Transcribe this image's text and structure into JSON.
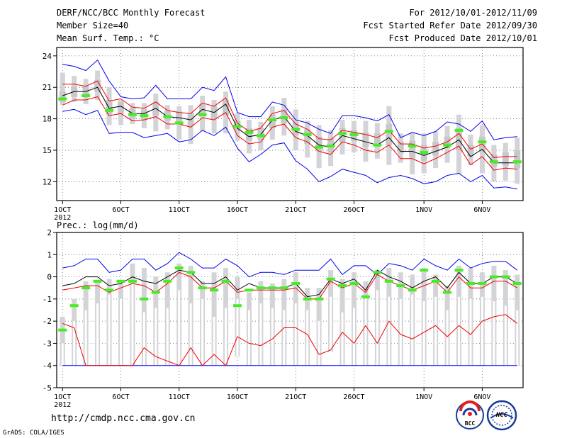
{
  "header": {
    "left": [
      "DERF/NCC/BCC Monthly Forecast",
      "Member Size=40",
      "Mean Surf. Temp.: °C"
    ],
    "right": [
      "For 2012/10/01-2012/11/09",
      "Fcst Started Refer Date 2012/09/30",
      "Fcst Produced Date 2012/10/01"
    ]
  },
  "footer": {
    "url": "http://cmdp.ncc.cma.gov.cn",
    "credit": "GrADS: COLA/IGES",
    "logo_left_text": "BCC",
    "logo_right_text": "NCC"
  },
  "colors": {
    "envelope": "#0000ee",
    "spread": "#ee0000",
    "mean": "#000000",
    "box": "#d4d4d8",
    "marker": "#44ee22",
    "grid": "#555555"
  },
  "chart_data": [
    {
      "type": "box-ensemble",
      "title": "Mean Surf. Temp.: °C",
      "x_tick_labels": [
        "1OCT",
        "6OCT",
        "11OCT",
        "16OCT",
        "21OCT",
        "26OCT",
        "1NOV",
        "6NOV"
      ],
      "x_tick_days": [
        1,
        6,
        11,
        16,
        21,
        26,
        32,
        37
      ],
      "x_year_label": "2012",
      "xlim": [
        0.5,
        40.5
      ],
      "ylim": [
        10.2,
        24.8
      ],
      "y_ticks": [
        12,
        15,
        18,
        21,
        24
      ],
      "days": [
        1,
        2,
        3,
        4,
        5,
        6,
        7,
        8,
        9,
        10,
        11,
        12,
        13,
        14,
        15,
        16,
        17,
        18,
        19,
        20,
        21,
        22,
        23,
        24,
        25,
        26,
        27,
        28,
        29,
        30,
        31,
        32,
        33,
        34,
        35,
        36,
        37,
        38,
        39,
        40
      ],
      "max": [
        23.2,
        23.0,
        22.6,
        23.6,
        21.6,
        20.1,
        19.9,
        20.0,
        21.2,
        19.9,
        19.9,
        19.9,
        21.0,
        20.7,
        22.0,
        18.6,
        18.2,
        18.2,
        19.6,
        19.3,
        17.9,
        17.6,
        17.0,
        16.6,
        18.3,
        18.3,
        18.1,
        17.8,
        18.4,
        16.2,
        16.7,
        16.4,
        16.8,
        17.7,
        17.5,
        16.8,
        17.8,
        16.0,
        16.2,
        16.3
      ],
      "max_ensemble_top": [
        22.4,
        22.1,
        21.8,
        22.6,
        21.0,
        19.8,
        19.5,
        19.5,
        20.4,
        19.3,
        19.2,
        19.3,
        20.2,
        19.8,
        20.6,
        18.5,
        17.9,
        17.7,
        19.2,
        20.0,
        18.9,
        17.8,
        17.4,
        16.9,
        17.9,
        17.8,
        17.8,
        17.6,
        19.2,
        16.6,
        16.7,
        16.6,
        16.8,
        17.3,
        18.4,
        16.5,
        17.4,
        15.5,
        15.7,
        16.2
      ],
      "min_ensemble_bottom": [
        19.3,
        19.6,
        19.4,
        19.8,
        17.4,
        17.4,
        17.5,
        17.1,
        16.8,
        17.0,
        16.0,
        15.6,
        16.8,
        16.6,
        16.6,
        15.9,
        14.7,
        15.0,
        16.0,
        16.4,
        15.0,
        14.3,
        13.3,
        13.5,
        14.6,
        14.8,
        13.9,
        14.2,
        13.6,
        13.8,
        12.7,
        12.8,
        13.3,
        13.8,
        12.7,
        13.6,
        12.8,
        12.0,
        12.1,
        11.8
      ],
      "q75": [
        20.6,
        21.1,
        21.1,
        21.7,
        19.8,
        19.6,
        19.0,
        18.9,
        19.6,
        18.8,
        18.7,
        18.5,
        19.4,
        19.2,
        19.8,
        17.8,
        17.1,
        17.1,
        18.4,
        18.9,
        17.7,
        17.0,
        16.3,
        16.1,
        17.1,
        16.9,
        16.7,
        16.6,
        17.5,
        15.8,
        15.9,
        15.5,
        15.8,
        16.3,
        17.1,
        15.5,
        16.3,
        14.6,
        14.8,
        15.0
      ],
      "q25": [
        19.6,
        20.1,
        20.3,
        20.6,
        18.4,
        18.5,
        18.0,
        17.9,
        18.3,
        17.8,
        17.5,
        17.3,
        18.2,
        18.0,
        18.3,
        16.8,
        15.9,
        16.0,
        17.1,
        17.6,
        16.4,
        15.6,
        14.9,
        14.8,
        15.8,
        15.9,
        15.3,
        15.3,
        15.5,
        14.7,
        14.3,
        14.0,
        14.5,
        15.2,
        15.0,
        14.4,
        14.9,
        13.4,
        13.5,
        13.3
      ],
      "median": [
        20.2,
        20.7,
        20.5,
        21.0,
        18.9,
        19.1,
        18.5,
        18.4,
        18.9,
        18.2,
        18.0,
        17.7,
        18.8,
        18.5,
        19.0,
        17.2,
        16.4,
        16.4,
        17.8,
        18.2,
        16.9,
        16.4,
        15.4,
        15.3,
        16.5,
        16.4,
        16.0,
        15.7,
        16.7,
        15.3,
        15.4,
        14.9,
        14.9,
        15.5,
        16.8,
        14.9,
        15.6,
        13.8,
        14.0,
        14.0
      ],
      "upper_spread": [
        21.3,
        21.3,
        21.1,
        21.6,
        19.7,
        19.9,
        19.1,
        19.0,
        19.6,
        18.8,
        18.6,
        18.5,
        19.5,
        19.2,
        20.0,
        17.6,
        16.8,
        17.1,
        18.5,
        18.8,
        17.5,
        17.0,
        16.1,
        16.0,
        16.9,
        16.7,
        16.5,
        16.2,
        16.9,
        15.6,
        15.6,
        15.2,
        15.4,
        15.8,
        16.6,
        15.1,
        15.6,
        14.3,
        14.4,
        14.4
      ],
      "mean": [
        20.2,
        20.6,
        20.6,
        21.0,
        19.0,
        19.2,
        18.5,
        18.5,
        19.0,
        18.2,
        18.1,
        17.9,
        18.9,
        18.6,
        19.4,
        17.1,
        16.3,
        16.5,
        17.9,
        18.2,
        16.8,
        16.4,
        15.5,
        15.3,
        16.4,
        16.1,
        15.8,
        15.5,
        16.2,
        14.9,
        14.9,
        14.5,
        14.9,
        15.3,
        16.0,
        14.4,
        15.1,
        13.8,
        13.8,
        13.8
      ],
      "lower_spread": [
        19.3,
        19.8,
        19.8,
        20.1,
        18.3,
        18.5,
        17.8,
        17.9,
        18.2,
        17.5,
        17.5,
        17.2,
        18.1,
        17.9,
        18.6,
        16.4,
        15.6,
        15.8,
        17.2,
        17.5,
        16.2,
        15.8,
        14.9,
        14.6,
        15.8,
        15.5,
        15.0,
        14.8,
        15.5,
        14.2,
        14.2,
        13.7,
        14.2,
        14.8,
        15.4,
        13.6,
        14.4,
        13.1,
        13.3,
        13.2
      ],
      "min": [
        18.7,
        18.9,
        18.4,
        18.8,
        16.6,
        16.7,
        16.7,
        16.2,
        16.4,
        16.6,
        15.8,
        16.0,
        16.9,
        16.4,
        17.2,
        15.2,
        13.9,
        14.6,
        15.5,
        15.7,
        14.0,
        13.2,
        12.0,
        12.5,
        13.2,
        12.9,
        12.6,
        11.9,
        12.4,
        12.6,
        12.3,
        11.8,
        12.0,
        12.6,
        12.8,
        12.0,
        12.6,
        11.4,
        11.5,
        11.3
      ],
      "green": [
        19.9,
        null,
        20.2,
        null,
        18.8,
        null,
        18.4,
        18.3,
        null,
        18.2,
        17.6,
        null,
        18.4,
        null,
        null,
        17.3,
        16.7,
        16.4,
        17.9,
        18.1,
        17.0,
        16.5,
        15.3,
        15.4,
        16.6,
        16.5,
        null,
        15.5,
        16.8,
        null,
        15.4,
        14.8,
        null,
        15.5,
        16.9,
        null,
        15.8,
        13.9,
        null,
        13.9
      ]
    },
    {
      "type": "box-ensemble",
      "title": "Prec.: log(mm/d)",
      "x_tick_labels": [
        "1OCT",
        "6OCT",
        "11OCT",
        "16OCT",
        "21OCT",
        "26OCT",
        "1NOV",
        "6NOV"
      ],
      "x_tick_days": [
        1,
        6,
        11,
        16,
        21,
        26,
        32,
        37
      ],
      "x_year_label": "2012",
      "xlim": [
        0.5,
        40.5
      ],
      "ylim": [
        -5,
        2
      ],
      "y_ticks": [
        -5,
        -4,
        -3,
        -2,
        -1,
        0,
        1,
        2
      ],
      "days": [
        1,
        2,
        3,
        4,
        5,
        6,
        7,
        8,
        9,
        10,
        11,
        12,
        13,
        14,
        15,
        16,
        17,
        18,
        19,
        20,
        21,
        22,
        23,
        24,
        25,
        26,
        27,
        28,
        29,
        30,
        31,
        32,
        33,
        34,
        35,
        36,
        37,
        38,
        39,
        40
      ],
      "max": [
        0.4,
        0.5,
        0.8,
        0.8,
        0.2,
        0.3,
        0.8,
        0.8,
        0.3,
        0.6,
        1.1,
        0.8,
        0.4,
        0.4,
        0.8,
        0.5,
        0.0,
        0.2,
        0.2,
        0.1,
        0.3,
        0.3,
        0.3,
        0.8,
        0.1,
        0.5,
        0.5,
        0.1,
        0.6,
        0.5,
        0.3,
        0.8,
        0.5,
        0.3,
        0.8,
        0.4,
        0.6,
        0.7,
        0.7,
        0.3
      ],
      "box_top": [
        -1.8,
        -1.0,
        -0.2,
        -0.2,
        -0.1,
        -0.3,
        0.6,
        0.4,
        0.0,
        0.2,
        0.6,
        0.5,
        -0.2,
        0.2,
        0.4,
        0.0,
        -0.7,
        -0.2,
        -0.3,
        -0.1,
        0.2,
        -0.5,
        -0.5,
        0.3,
        -0.1,
        0.2,
        -0.2,
        0.3,
        0.4,
        0.2,
        0.1,
        0.4,
        0.1,
        -0.4,
        0.5,
        0.4,
        0.2,
        0.5,
        0.3,
        0.1
      ],
      "q75": [
        -3.0,
        -2.0,
        -1.5,
        -1.2,
        -0.8,
        -1.0,
        -0.3,
        -1.6,
        -1.4,
        -1.4,
        -0.6,
        -1.2,
        -1.0,
        -1.8,
        -1.4,
        -1.0,
        -1.5,
        -1.2,
        -1.4,
        -1.5,
        -1.2,
        -1.5,
        -2.0,
        -0.9,
        -1.6,
        -1.4,
        -1.0,
        -0.6,
        -0.9,
        -1.0,
        -0.8,
        -1.1,
        -0.9,
        -1.5,
        -0.9,
        -1.0,
        -0.9,
        -1.1,
        -1.3,
        -1.5
      ],
      "box_bottom": [
        -4.0,
        -4.0,
        -4.0,
        -4.0,
        -4.0,
        -4.0,
        -4.0,
        -4.0,
        -4.0,
        -4.0,
        -4.0,
        -4.0,
        -4.0,
        -4.0,
        -4.0,
        -3.6,
        -4.0,
        -4.0,
        -4.0,
        -4.0,
        -4.0,
        -4.0,
        -4.0,
        -3.4,
        -4.0,
        -4.0,
        -4.0,
        -4.0,
        -4.0,
        -4.0,
        -4.0,
        -4.0,
        -4.0,
        -4.0,
        -4.0,
        -4.0,
        -4.0,
        -4.0,
        -4.0,
        -4.0
      ],
      "mean": [
        -0.4,
        -0.3,
        0.0,
        0.0,
        -0.4,
        -0.3,
        0.0,
        -0.2,
        -0.3,
        0.0,
        0.3,
        0.2,
        -0.3,
        -0.3,
        0.0,
        -0.6,
        -0.3,
        -0.5,
        -0.5,
        -0.5,
        -0.3,
        -0.9,
        -0.8,
        -0.1,
        -0.3,
        -0.1,
        -0.6,
        0.3,
        0.0,
        -0.2,
        -0.5,
        -0.2,
        0.0,
        -0.5,
        0.2,
        -0.3,
        -0.3,
        0.0,
        0.0,
        -0.3
      ],
      "upper_spread": [
        -0.6,
        -0.5,
        -0.4,
        -0.4,
        -0.7,
        -0.5,
        -0.3,
        -0.4,
        -0.7,
        -0.3,
        0.2,
        0.0,
        -0.5,
        -0.5,
        -0.2,
        -0.7,
        -0.6,
        -0.6,
        -0.6,
        -0.6,
        -0.5,
        -1.0,
        -1.0,
        -0.2,
        -0.5,
        -0.3,
        -0.7,
        0.1,
        -0.2,
        -0.4,
        -0.6,
        -0.4,
        -0.2,
        -0.7,
        0.0,
        -0.5,
        -0.5,
        -0.2,
        -0.2,
        -0.5
      ],
      "lower_spread": [
        -0.8,
        -0.7,
        -0.7,
        -0.9,
        -1.0,
        -0.8,
        -0.5,
        -0.8,
        -1.0,
        -0.6,
        -0.2,
        -0.5,
        -0.8,
        -0.7,
        -0.6,
        -1.1,
        -0.8,
        -0.6,
        -0.5,
        -0.6,
        -0.7,
        -1.1,
        -1.1,
        -0.4,
        -0.6,
        -0.6,
        -0.9,
        0.0,
        -0.3,
        -0.7,
        -0.6,
        -0.4,
        -0.3,
        -0.8,
        -0.2,
        -0.7,
        -0.6,
        -0.3,
        -0.2,
        -0.5
      ],
      "lower_red": [
        -2.1,
        -2.3,
        -4.0,
        -4.0,
        -4.0,
        -4.0,
        -4.0,
        -3.2,
        -3.6,
        -3.8,
        -4.0,
        -3.2,
        -4.0,
        -3.5,
        -4.0,
        -2.7,
        -3.0,
        -3.1,
        -2.8,
        -2.3,
        -2.3,
        -2.6,
        -3.5,
        -3.3,
        -2.5,
        -3.0,
        -2.2,
        -3.0,
        -2.0,
        -2.6,
        -2.8,
        -2.5,
        -2.2,
        -2.7,
        -2.2,
        -2.6,
        -2.0,
        -1.8,
        -1.7,
        -2.1
      ],
      "min": [
        -4.0,
        -4.0,
        -4.0,
        -4.0,
        -4.0,
        -4.0,
        -4.0,
        -4.0,
        -4.0,
        -4.0,
        -4.0,
        -4.0,
        -4.0,
        -4.0,
        -4.0,
        -4.0,
        -4.0,
        -4.0,
        -4.0,
        -4.0,
        -4.0,
        -4.0,
        -4.0,
        -4.0,
        -4.0,
        -4.0,
        -4.0,
        -4.0,
        -4.0,
        -4.0,
        -4.0,
        -4.0,
        -4.0,
        -4.0,
        -4.0,
        -4.0,
        -4.0,
        -4.0,
        -4.0,
        -4.0
      ],
      "green": [
        -2.4,
        -1.3,
        -0.5,
        -0.2,
        -0.6,
        -0.2,
        -0.2,
        -1.0,
        -0.7,
        -0.2,
        0.4,
        0.2,
        -0.5,
        -0.6,
        -0.2,
        -1.3,
        -0.6,
        -0.5,
        -0.5,
        -0.5,
        -0.3,
        -1.0,
        -1.0,
        -0.1,
        -0.4,
        -0.3,
        -0.9,
        0.2,
        -0.2,
        -0.4,
        -0.6,
        0.3,
        -0.2,
        -0.7,
        0.3,
        -0.3,
        -0.3,
        0.0,
        0.0,
        -0.3
      ]
    }
  ]
}
